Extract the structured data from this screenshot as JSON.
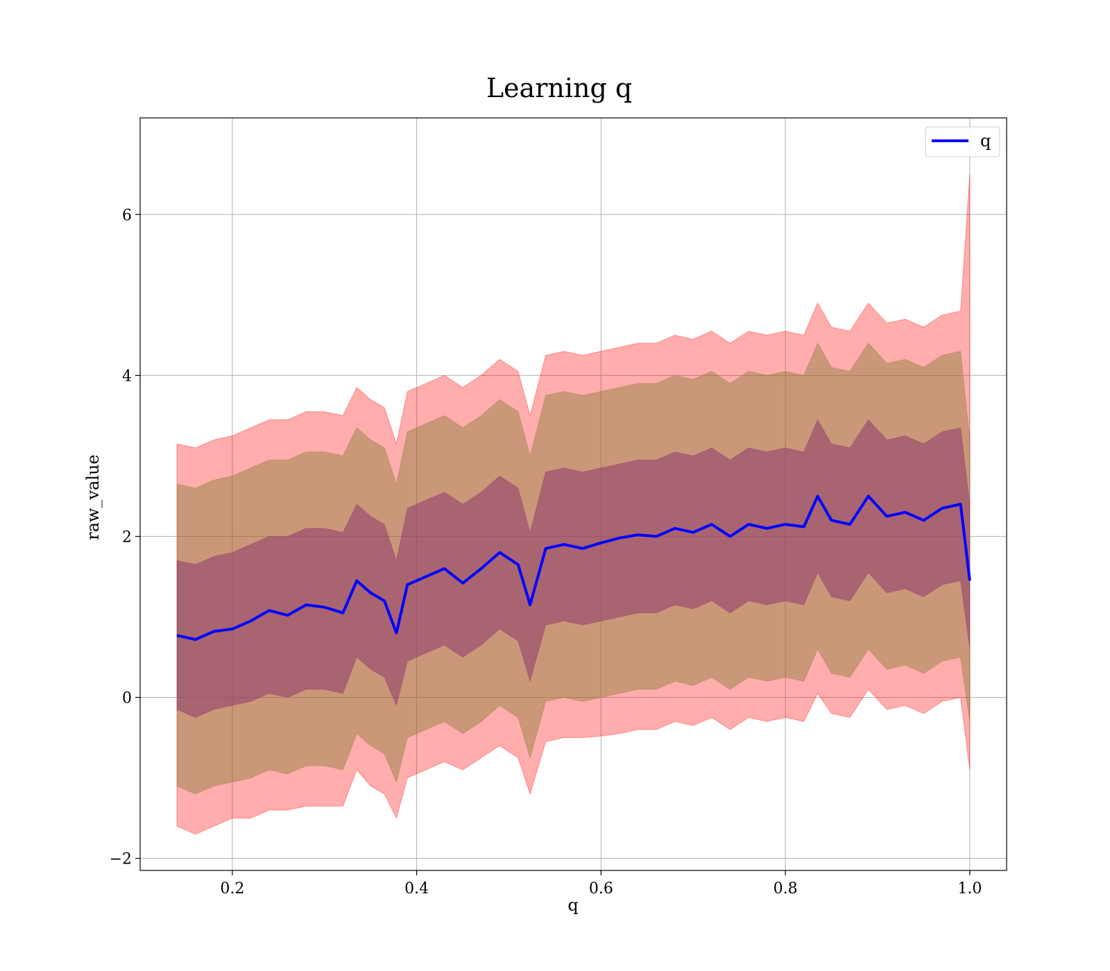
{
  "chart_data": {
    "type": "line",
    "title": "Learning q",
    "xlabel": "q",
    "ylabel": "raw_value",
    "xlim": [
      0.1,
      1.04
    ],
    "ylim": [
      -2.15,
      7.2
    ],
    "xticks": [
      0.2,
      0.4,
      0.6,
      0.8,
      1.0
    ],
    "xtick_labels": [
      "0.2",
      "0.4",
      "0.6",
      "0.8",
      "1.0"
    ],
    "yticks": [
      -2,
      0,
      2,
      4,
      6
    ],
    "ytick_labels": [
      "−2",
      "0",
      "2",
      "4",
      "6"
    ],
    "grid": true,
    "legend": {
      "position": "top-right",
      "entries": [
        "q"
      ]
    },
    "colors": {
      "mean": "#0000ff",
      "band": "#ff0000",
      "band1": "#8e3a6e",
      "band2": "#8b7d3a"
    },
    "series": [
      {
        "name": "q",
        "x": [
          0.14,
          0.16,
          0.18,
          0.2,
          0.22,
          0.24,
          0.26,
          0.28,
          0.3,
          0.32,
          0.335,
          0.35,
          0.365,
          0.378,
          0.39,
          0.41,
          0.43,
          0.45,
          0.47,
          0.49,
          0.51,
          0.523,
          0.54,
          0.56,
          0.58,
          0.6,
          0.62,
          0.64,
          0.66,
          0.68,
          0.7,
          0.72,
          0.74,
          0.76,
          0.78,
          0.8,
          0.82,
          0.835,
          0.85,
          0.87,
          0.89,
          0.91,
          0.93,
          0.95,
          0.97,
          0.99,
          1.0
        ],
        "mean": [
          0.77,
          0.72,
          0.82,
          0.85,
          0.95,
          1.08,
          1.02,
          1.15,
          1.12,
          1.05,
          1.45,
          1.3,
          1.2,
          0.8,
          1.4,
          1.5,
          1.6,
          1.42,
          1.6,
          1.8,
          1.65,
          1.15,
          1.85,
          1.9,
          1.85,
          1.92,
          1.98,
          2.02,
          2.0,
          2.1,
          2.05,
          2.15,
          2.0,
          2.15,
          2.1,
          2.15,
          2.12,
          2.5,
          2.2,
          2.15,
          2.5,
          2.25,
          2.3,
          2.2,
          2.35,
          2.4,
          1.45
        ],
        "band_outer_low": [
          -1.6,
          -1.7,
          -1.6,
          -1.5,
          -1.5,
          -1.4,
          -1.4,
          -1.35,
          -1.35,
          -1.35,
          -0.9,
          -1.1,
          -1.2,
          -1.5,
          -1.0,
          -0.9,
          -0.8,
          -0.9,
          -0.75,
          -0.6,
          -0.75,
          -1.2,
          -0.55,
          -0.5,
          -0.5,
          -0.48,
          -0.45,
          -0.4,
          -0.4,
          -0.3,
          -0.35,
          -0.25,
          -0.4,
          -0.25,
          -0.3,
          -0.25,
          -0.3,
          0.05,
          -0.2,
          -0.25,
          0.1,
          -0.15,
          -0.1,
          -0.2,
          -0.05,
          0.0,
          -0.9
        ],
        "band_outer_high": [
          3.15,
          3.1,
          3.2,
          3.25,
          3.35,
          3.45,
          3.45,
          3.55,
          3.55,
          3.5,
          3.85,
          3.7,
          3.6,
          3.15,
          3.8,
          3.9,
          4.0,
          3.85,
          4.0,
          4.2,
          4.05,
          3.5,
          4.25,
          4.3,
          4.25,
          4.3,
          4.35,
          4.4,
          4.4,
          4.5,
          4.45,
          4.55,
          4.4,
          4.55,
          4.5,
          4.55,
          4.5,
          4.9,
          4.6,
          4.55,
          4.9,
          4.65,
          4.7,
          4.6,
          4.75,
          4.8,
          6.5
        ],
        "band_mid_low": [
          -1.1,
          -1.2,
          -1.1,
          -1.05,
          -1.0,
          -0.9,
          -0.95,
          -0.85,
          -0.85,
          -0.9,
          -0.45,
          -0.6,
          -0.7,
          -1.05,
          -0.5,
          -0.4,
          -0.3,
          -0.45,
          -0.3,
          -0.1,
          -0.25,
          -0.75,
          -0.05,
          0.0,
          -0.05,
          0.0,
          0.05,
          0.1,
          0.1,
          0.2,
          0.15,
          0.25,
          0.1,
          0.25,
          0.2,
          0.25,
          0.2,
          0.6,
          0.3,
          0.25,
          0.6,
          0.35,
          0.4,
          0.3,
          0.45,
          0.5,
          -0.3
        ],
        "band_mid_high": [
          2.65,
          2.6,
          2.7,
          2.75,
          2.85,
          2.95,
          2.95,
          3.05,
          3.05,
          3.0,
          3.35,
          3.2,
          3.1,
          2.65,
          3.3,
          3.4,
          3.5,
          3.35,
          3.5,
          3.7,
          3.55,
          3.0,
          3.75,
          3.8,
          3.75,
          3.8,
          3.85,
          3.9,
          3.9,
          4.0,
          3.95,
          4.05,
          3.9,
          4.05,
          4.0,
          4.05,
          4.0,
          4.4,
          4.1,
          4.05,
          4.4,
          4.15,
          4.2,
          4.1,
          4.25,
          4.3,
          3.2
        ],
        "band_inner_low": [
          -0.15,
          -0.25,
          -0.15,
          -0.1,
          -0.05,
          0.05,
          0.0,
          0.1,
          0.1,
          0.05,
          0.5,
          0.35,
          0.25,
          -0.1,
          0.45,
          0.55,
          0.65,
          0.5,
          0.65,
          0.85,
          0.7,
          0.2,
          0.9,
          0.95,
          0.9,
          0.95,
          1.0,
          1.05,
          1.05,
          1.15,
          1.1,
          1.2,
          1.05,
          1.2,
          1.15,
          1.2,
          1.15,
          1.55,
          1.25,
          1.2,
          1.55,
          1.3,
          1.35,
          1.25,
          1.4,
          1.45,
          0.6
        ],
        "band_inner_high": [
          1.7,
          1.65,
          1.75,
          1.8,
          1.9,
          2.0,
          2.0,
          2.1,
          2.1,
          2.05,
          2.4,
          2.25,
          2.15,
          1.7,
          2.35,
          2.45,
          2.55,
          2.4,
          2.55,
          2.75,
          2.6,
          2.05,
          2.8,
          2.85,
          2.8,
          2.85,
          2.9,
          2.95,
          2.95,
          3.05,
          3.0,
          3.1,
          2.95,
          3.1,
          3.05,
          3.1,
          3.05,
          3.45,
          3.15,
          3.1,
          3.45,
          3.2,
          3.25,
          3.15,
          3.3,
          3.35,
          2.4
        ]
      }
    ]
  }
}
